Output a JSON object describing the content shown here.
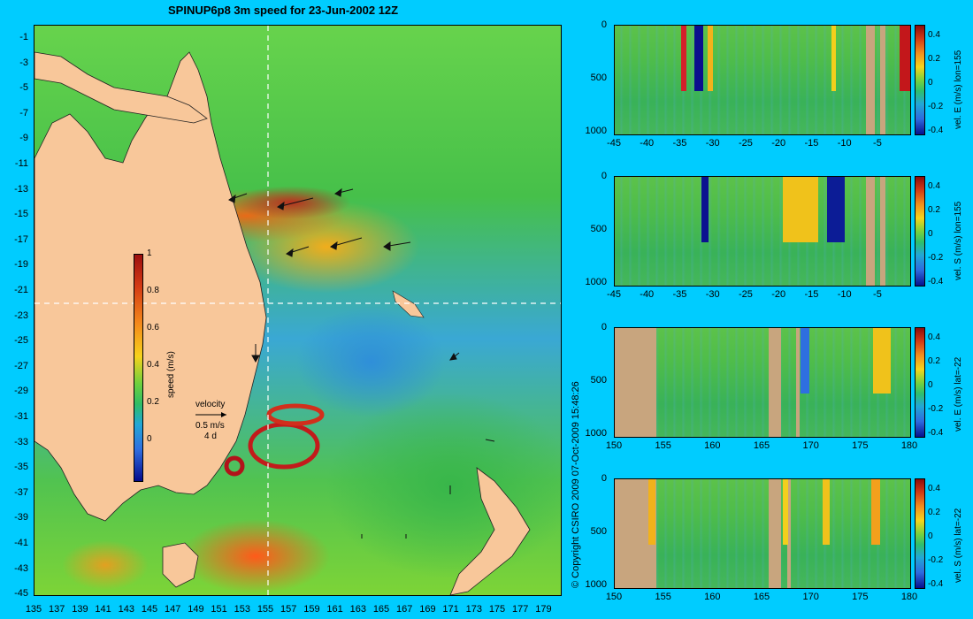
{
  "title": "SPINUP6p8 3m speed for 23-Jun-2002 12Z",
  "map": {
    "lat_ticks": [
      "-1",
      "-3",
      "-5",
      "-7",
      "-9",
      "-11",
      "-13",
      "-15",
      "-17",
      "-19",
      "-21",
      "-23",
      "-25",
      "-27",
      "-29",
      "-31",
      "-33",
      "-35",
      "-37",
      "-39",
      "-41",
      "-43",
      "-45"
    ],
    "lon_ticks": [
      "135",
      "137",
      "139",
      "141",
      "143",
      "145",
      "147",
      "149",
      "151",
      "153",
      "155",
      "157",
      "159",
      "161",
      "163",
      "165",
      "167",
      "169",
      "171",
      "173",
      "175",
      "177",
      "179"
    ],
    "land_color": "#f8c79a",
    "section_lines": {
      "lon": 155,
      "lat": -22
    }
  },
  "colorbar": {
    "ticks": [
      "1",
      "0.8",
      "0.6",
      "0.4",
      "0.2",
      "0"
    ],
    "label": "speed (m/s)"
  },
  "velocity_legend": {
    "title": "velocity",
    "scale": "0.5 m/s",
    "period": "4 d"
  },
  "copyright": "© Copyright CSIRO 2009   07-Oct-2009 15:48:26",
  "panels": [
    {
      "label": "vel. E (m/s) lon=155",
      "x_ticks": [
        "-45",
        "-40",
        "-35",
        "-30",
        "-25",
        "-20",
        "-15",
        "-10",
        "-5"
      ],
      "y_ticks": [
        "0",
        "500",
        "1000"
      ],
      "cb_ticks": [
        "0.4",
        "0.2",
        "0",
        "-0.2",
        "-0.4"
      ]
    },
    {
      "label": "vel. S (m/s) lon=155",
      "x_ticks": [
        "-45",
        "-40",
        "-35",
        "-30",
        "-25",
        "-20",
        "-15",
        "-10",
        "-5"
      ],
      "y_ticks": [
        "0",
        "500",
        "1000"
      ],
      "cb_ticks": [
        "0.4",
        "0.2",
        "0",
        "-0.2",
        "-0.4"
      ]
    },
    {
      "label": "vel. E (m/s) lat=-22",
      "x_ticks": [
        "150",
        "155",
        "160",
        "165",
        "170",
        "175",
        "180"
      ],
      "y_ticks": [
        "0",
        "500",
        "1000"
      ],
      "cb_ticks": [
        "0.4",
        "0.2",
        "0",
        "-0.2",
        "-0.4"
      ]
    },
    {
      "label": "vel. S (m/s) lat=-22",
      "x_ticks": [
        "150",
        "155",
        "160",
        "165",
        "170",
        "175",
        "180"
      ],
      "y_ticks": [
        "0",
        "500",
        "1000"
      ],
      "cb_ticks": [
        "0.4",
        "0.2",
        "0",
        "-0.2",
        "-0.4"
      ]
    }
  ]
}
